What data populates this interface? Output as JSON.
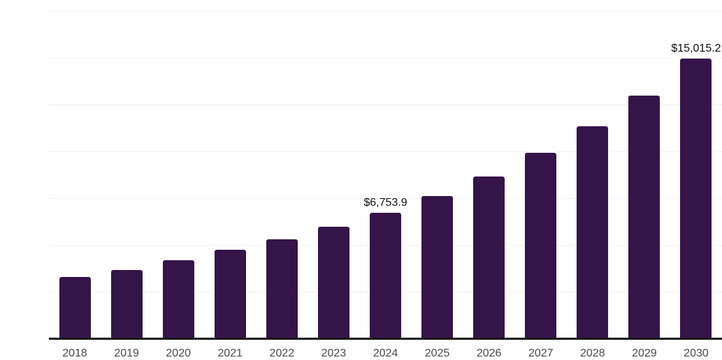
{
  "chart_data": {
    "type": "bar",
    "title": "",
    "xlabel": "",
    "ylabel": "",
    "categories": [
      "2018",
      "2019",
      "2020",
      "2021",
      "2022",
      "2023",
      "2024",
      "2025",
      "2026",
      "2027",
      "2028",
      "2029",
      "2030"
    ],
    "values": [
      3325,
      3700,
      4220,
      4780,
      5340,
      6010,
      6753.9,
      7660,
      8700,
      9970,
      11390,
      13035,
      15015.2
    ],
    "annotations": [
      {
        "category": "2024",
        "label": "$6,753.9"
      },
      {
        "category": "2030",
        "label": "$15,015.2"
      }
    ],
    "ylim": [
      0,
      17500
    ],
    "gridline_step": 2500,
    "grid": true,
    "legend": false,
    "y_tick_labels_visible": false,
    "colors": {
      "bar": "#351449",
      "axis_line": "#161616",
      "gridline": "#efefef",
      "tick_label": "#4a4a4a",
      "annotation": "#111111",
      "background": "#ffffff"
    }
  }
}
